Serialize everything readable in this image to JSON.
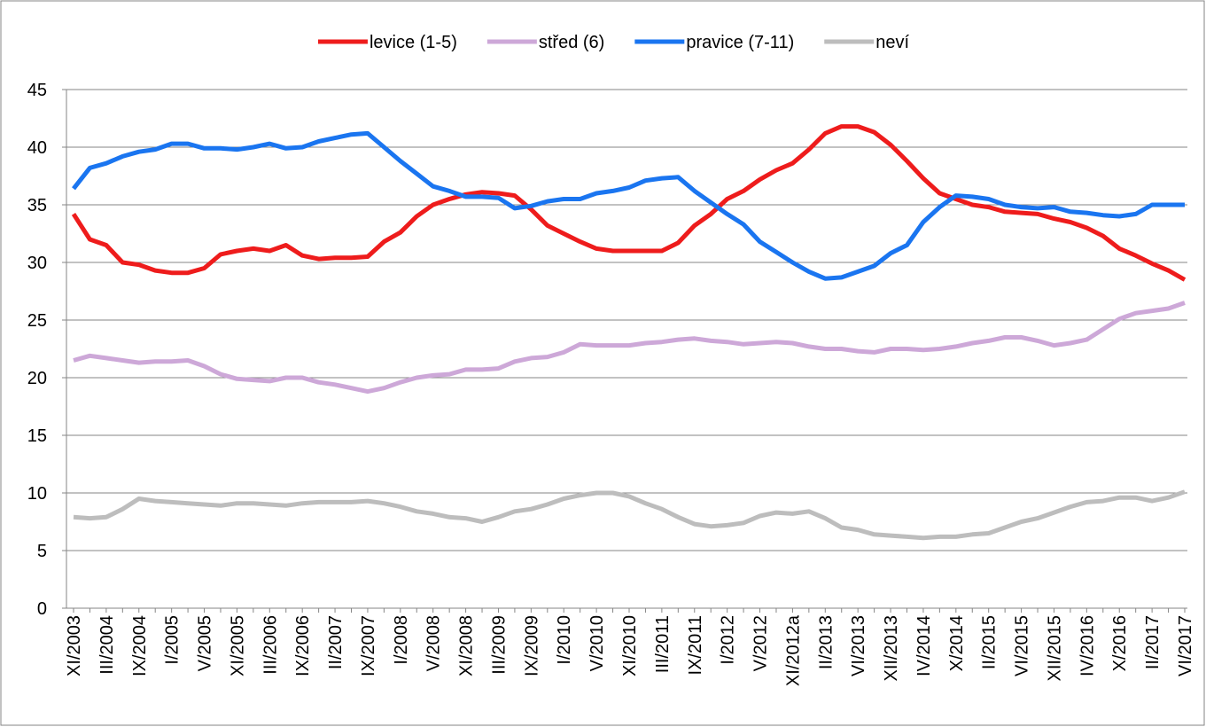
{
  "chart_data": {
    "type": "line",
    "categories": [
      "XI/2003",
      null,
      "III/2004",
      null,
      "IX/2004",
      null,
      "I/2005",
      null,
      "V/2005",
      null,
      "XI/2005",
      null,
      "III/2006",
      null,
      "IX/2006",
      null,
      "II/2007",
      null,
      "IX/2007",
      null,
      "I/2008",
      null,
      "V/2008",
      null,
      "XI/2008",
      null,
      "III/2009",
      null,
      "IX/2009",
      null,
      "I/2010",
      null,
      "V/2010",
      null,
      "XI/2010",
      null,
      "III/2011",
      null,
      "IX/2011",
      null,
      "I/2012",
      null,
      "V/2012",
      null,
      "XI/2012a",
      null,
      "II/2013",
      null,
      "VI/2013",
      null,
      "XII/2013",
      null,
      "IV/2014",
      null,
      "X/2014",
      null,
      "II/2015",
      null,
      "VI/2015",
      null,
      "XII/2015",
      null,
      "IV/2016",
      null,
      "X/2016",
      null,
      "II/2017",
      null,
      "VI/2017"
    ],
    "series": [
      {
        "name": "levice (1-5)",
        "color": "#ee1c1c",
        "values": [
          34.2,
          32.0,
          31.5,
          30.0,
          29.8,
          29.3,
          29.1,
          29.1,
          29.5,
          30.7,
          31.0,
          31.2,
          31.0,
          31.5,
          30.6,
          30.3,
          30.4,
          30.4,
          30.5,
          31.8,
          32.6,
          34.0,
          35.0,
          35.5,
          35.9,
          36.1,
          36.0,
          35.8,
          34.6,
          33.2,
          32.5,
          31.8,
          31.2,
          31.0,
          31.0,
          31.0,
          31.0,
          31.7,
          33.2,
          34.2,
          35.5,
          36.2,
          37.2,
          38.0,
          38.6,
          39.8,
          41.2,
          41.8,
          41.8,
          41.3,
          40.2,
          38.8,
          37.3,
          36.0,
          35.5,
          35.0,
          34.8,
          34.4,
          34.3,
          34.2,
          33.8,
          33.5,
          33.0,
          32.3,
          31.2,
          30.6,
          29.9,
          29.3,
          28.5
        ]
      },
      {
        "name": "střed (6)",
        "color": "#cda8d8",
        "values": [
          21.5,
          21.9,
          21.7,
          21.5,
          21.3,
          21.4,
          21.4,
          21.5,
          21.0,
          20.3,
          19.9,
          19.8,
          19.7,
          20.0,
          20.0,
          19.6,
          19.4,
          19.1,
          18.8,
          19.1,
          19.6,
          20.0,
          20.2,
          20.3,
          20.7,
          20.7,
          20.8,
          21.4,
          21.7,
          21.8,
          22.2,
          22.9,
          22.8,
          22.8,
          22.8,
          23.0,
          23.1,
          23.3,
          23.4,
          23.2,
          23.1,
          22.9,
          23.0,
          23.1,
          23.0,
          22.7,
          22.5,
          22.5,
          22.3,
          22.2,
          22.5,
          22.5,
          22.4,
          22.5,
          22.7,
          23.0,
          23.2,
          23.5,
          23.5,
          23.2,
          22.8,
          23.0,
          23.3,
          24.2,
          25.1,
          25.6,
          25.8,
          26.0,
          26.5
        ]
      },
      {
        "name": "pravice (7-11)",
        "color": "#1a75f0",
        "values": [
          36.4,
          38.2,
          38.6,
          39.2,
          39.6,
          39.8,
          40.3,
          40.3,
          39.9,
          39.9,
          39.8,
          40.0,
          40.3,
          39.9,
          40.0,
          40.5,
          40.8,
          41.1,
          41.2,
          40.0,
          38.8,
          37.7,
          36.6,
          36.2,
          35.7,
          35.7,
          35.6,
          34.7,
          34.9,
          35.3,
          35.5,
          35.5,
          36.0,
          36.2,
          36.5,
          37.1,
          37.3,
          37.4,
          36.2,
          35.2,
          34.2,
          33.3,
          31.8,
          30.9,
          30.0,
          29.2,
          28.6,
          28.7,
          29.2,
          29.7,
          30.8,
          31.5,
          33.5,
          34.8,
          35.8,
          35.7,
          35.5,
          35.0,
          34.8,
          34.7,
          34.8,
          34.4,
          34.3,
          34.1,
          34.0,
          34.2,
          35.0,
          35.0,
          35.0
        ]
      },
      {
        "name": "neví",
        "color": "#bdbdbd",
        "values": [
          7.9,
          7.8,
          7.9,
          8.6,
          9.5,
          9.3,
          9.2,
          9.1,
          9.0,
          8.9,
          9.1,
          9.1,
          9.0,
          8.9,
          9.1,
          9.2,
          9.2,
          9.2,
          9.3,
          9.1,
          8.8,
          8.4,
          8.2,
          7.9,
          7.8,
          7.5,
          7.9,
          8.4,
          8.6,
          9.0,
          9.5,
          9.8,
          10.0,
          10.0,
          9.7,
          9.1,
          8.6,
          7.9,
          7.3,
          7.1,
          7.2,
          7.4,
          8.0,
          8.3,
          8.2,
          8.4,
          7.8,
          7.0,
          6.8,
          6.4,
          6.3,
          6.2,
          6.1,
          6.2,
          6.2,
          6.4,
          6.5,
          7.0,
          7.5,
          7.8,
          8.3,
          8.8,
          9.2,
          9.3,
          9.6,
          9.6,
          9.3,
          9.6,
          10.1
        ]
      }
    ],
    "ylim": [
      0,
      45
    ],
    "yticks": [
      0,
      5,
      10,
      15,
      20,
      25,
      30,
      35,
      40,
      45
    ],
    "grid": true,
    "legend": "top"
  }
}
